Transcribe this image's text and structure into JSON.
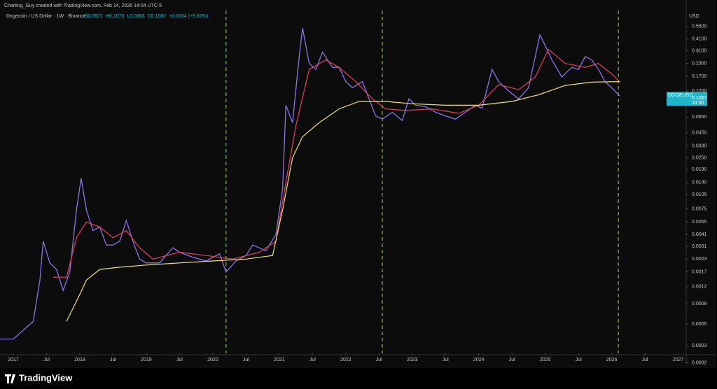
{
  "header": {
    "credit": "Charting_Guy created with TradingView.com, Feb 14, 2026 14:04 UTC-5",
    "symbol": "Dogecoin / US Dollar · 1W · Binance",
    "ohlc": [
      "O0.0971",
      "H0.1075",
      "L0.0883",
      "C0.1067",
      "+0.0094 (+9.66%)"
    ]
  },
  "footer": "TradingView",
  "chart_data": {
    "type": "line",
    "log_scale": true,
    "currency": "USD",
    "xlim": [
      2016.8,
      2027.12
    ],
    "xticks": [
      {
        "value": 2017,
        "label": "2017"
      },
      {
        "value": 2017.5,
        "label": "Jul"
      },
      {
        "value": 2018,
        "label": "2018"
      },
      {
        "value": 2018.5,
        "label": "Jul"
      },
      {
        "value": 2019,
        "label": "2019"
      },
      {
        "value": 2019.5,
        "label": "Jul"
      },
      {
        "value": 2020,
        "label": "2020"
      },
      {
        "value": 2020.5,
        "label": "Jul"
      },
      {
        "value": 2021,
        "label": "2021"
      },
      {
        "value": 2021.5,
        "label": "Jul"
      },
      {
        "value": 2022,
        "label": "2022"
      },
      {
        "value": 2022.5,
        "label": "Jul"
      },
      {
        "value": 2023,
        "label": "2023"
      },
      {
        "value": 2023.5,
        "label": "Jul"
      },
      {
        "value": 2024,
        "label": "2024"
      },
      {
        "value": 2024.5,
        "label": "Jul"
      },
      {
        "value": 2025,
        "label": "2025"
      },
      {
        "value": 2025.5,
        "label": "Jul"
      },
      {
        "value": 2026,
        "label": "2026"
      },
      {
        "value": 2026.5,
        "label": "Jul"
      },
      {
        "value": 2027,
        "label": "2027"
      }
    ],
    "ylim": [
      0.00025,
      0.8
    ],
    "yticks": [
      {
        "value": 0.55,
        "label": "0.5500"
      },
      {
        "value": 0.41,
        "label": "0.4100"
      },
      {
        "value": 0.31,
        "label": "0.3100"
      },
      {
        "value": 0.23,
        "label": "0.2300"
      },
      {
        "value": 0.17,
        "label": "0.1700"
      },
      {
        "value": 0.12,
        "label": "0.1200"
      },
      {
        "value": 0.065,
        "label": "0.0650"
      },
      {
        "value": 0.045,
        "label": "0.0450"
      },
      {
        "value": 0.033,
        "label": "0.0330"
      },
      {
        "value": 0.025,
        "label": "0.0250"
      },
      {
        "value": 0.019,
        "label": "0.0190"
      },
      {
        "value": 0.014,
        "label": "0.0140"
      },
      {
        "value": 0.0105,
        "label": "0.0105"
      },
      {
        "value": 0.0075,
        "label": "0.0075"
      },
      {
        "value": 0.0055,
        "label": "0.0055"
      },
      {
        "value": 0.0041,
        "label": "0.0041"
      },
      {
        "value": 0.0031,
        "label": "0.0031"
      },
      {
        "value": 0.0023,
        "label": "0.0023"
      },
      {
        "value": 0.0017,
        "label": "0.0017"
      },
      {
        "value": 0.0012,
        "label": "0.0012"
      },
      {
        "value": 0.0008,
        "label": "0.0008"
      },
      {
        "value": 0.0005,
        "label": "0.0005"
      },
      {
        "value": 0.0003,
        "label": "0.0003"
      },
      {
        "value": 0.0002,
        "label": "0.0002"
      }
    ],
    "vlines": [
      2020.2,
      2022.55,
      2026.1
    ],
    "vline_color": "#7fbf3f",
    "series": [
      {
        "color": "#8b74e8",
        "x": [
          2016.8,
          2017.0,
          2017.3,
          2017.4,
          2017.45,
          2017.55,
          2017.65,
          2017.75,
          2017.85,
          2017.95,
          2018.02,
          2018.1,
          2018.2,
          2018.3,
          2018.4,
          2018.5,
          2018.6,
          2018.7,
          2018.8,
          2018.9,
          2019.0,
          2019.2,
          2019.4,
          2019.5,
          2019.7,
          2019.9,
          2020.1,
          2020.2,
          2020.35,
          2020.5,
          2020.6,
          2020.8,
          2020.95,
          2021.05,
          2021.1,
          2021.2,
          2021.3,
          2021.35,
          2021.45,
          2021.55,
          2021.65,
          2021.8,
          2021.9,
          2022.0,
          2022.1,
          2022.25,
          2022.35,
          2022.45,
          2022.55,
          2022.7,
          2022.85,
          2022.95,
          2023.05,
          2023.2,
          2023.35,
          2023.5,
          2023.65,
          2023.8,
          2023.95,
          2024.05,
          2024.2,
          2024.3,
          2024.45,
          2024.6,
          2024.75,
          2024.85,
          2024.92,
          2025.0,
          2025.1,
          2025.25,
          2025.4,
          2025.5,
          2025.6,
          2025.7,
          2025.8,
          2025.9,
          2026.0,
          2026.12
        ],
        "values": [
          0.00035,
          0.00035,
          0.00053,
          0.0014,
          0.0035,
          0.0021,
          0.0018,
          0.0011,
          0.0017,
          0.0073,
          0.0154,
          0.0073,
          0.0045,
          0.0049,
          0.0032,
          0.0032,
          0.0035,
          0.0057,
          0.0035,
          0.0023,
          0.0021,
          0.0021,
          0.003,
          0.0027,
          0.0024,
          0.0022,
          0.0026,
          0.0017,
          0.0022,
          0.0025,
          0.0032,
          0.0028,
          0.0041,
          0.012,
          0.086,
          0.057,
          0.27,
          0.53,
          0.23,
          0.2,
          0.3,
          0.21,
          0.21,
          0.15,
          0.13,
          0.15,
          0.1,
          0.067,
          0.062,
          0.073,
          0.06,
          0.1,
          0.086,
          0.083,
          0.073,
          0.067,
          0.062,
          0.073,
          0.086,
          0.08,
          0.2,
          0.15,
          0.12,
          0.1,
          0.13,
          0.27,
          0.45,
          0.35,
          0.25,
          0.167,
          0.21,
          0.2,
          0.27,
          0.25,
          0.2,
          0.15,
          0.13,
          0.1067
        ]
      },
      {
        "color": "#e8415d",
        "x": [
          2017.6,
          2017.8,
          2017.95,
          2018.1,
          2018.3,
          2018.5,
          2018.7,
          2018.9,
          2019.1,
          2019.5,
          2019.9,
          2020.3,
          2020.7,
          2020.95,
          2021.1,
          2021.25,
          2021.45,
          2021.7,
          2021.9,
          2022.15,
          2022.4,
          2022.6,
          2022.9,
          2023.3,
          2023.7,
          2024.0,
          2024.3,
          2024.6,
          2024.85,
          2025.05,
          2025.3,
          2025.6,
          2025.8,
          2026.0,
          2026.12
        ],
        "values": [
          0.0015,
          0.0015,
          0.0038,
          0.0055,
          0.0049,
          0.0038,
          0.0045,
          0.003,
          0.0023,
          0.0027,
          0.0025,
          0.0023,
          0.0027,
          0.0035,
          0.014,
          0.053,
          0.2,
          0.25,
          0.21,
          0.15,
          0.1,
          0.079,
          0.076,
          0.079,
          0.071,
          0.086,
          0.14,
          0.124,
          0.167,
          0.32,
          0.23,
          0.21,
          0.23,
          0.18,
          0.15
        ]
      },
      {
        "color": "#f0e26a",
        "x": [
          2017.8,
          2018.0,
          2018.1,
          2018.3,
          2018.6,
          2019.0,
          2019.5,
          2020.0,
          2020.5,
          2020.9,
          2021.05,
          2021.2,
          2021.35,
          2021.6,
          2021.9,
          2022.2,
          2022.6,
          2023.0,
          2023.5,
          2024.0,
          2024.5,
          2024.9,
          2025.3,
          2025.7,
          2026.12
        ],
        "values": [
          0.00053,
          0.001,
          0.0014,
          0.0018,
          0.0019,
          0.002,
          0.0021,
          0.0022,
          0.0023,
          0.0025,
          0.0073,
          0.025,
          0.041,
          0.057,
          0.079,
          0.094,
          0.094,
          0.089,
          0.086,
          0.086,
          0.094,
          0.11,
          0.137,
          0.148,
          0.15
        ]
      }
    ],
    "price_tag": {
      "symbol": "DOGEUSD",
      "value": 0.1067,
      "countdown": "1d 5h",
      "color": "#22b5c9"
    }
  }
}
